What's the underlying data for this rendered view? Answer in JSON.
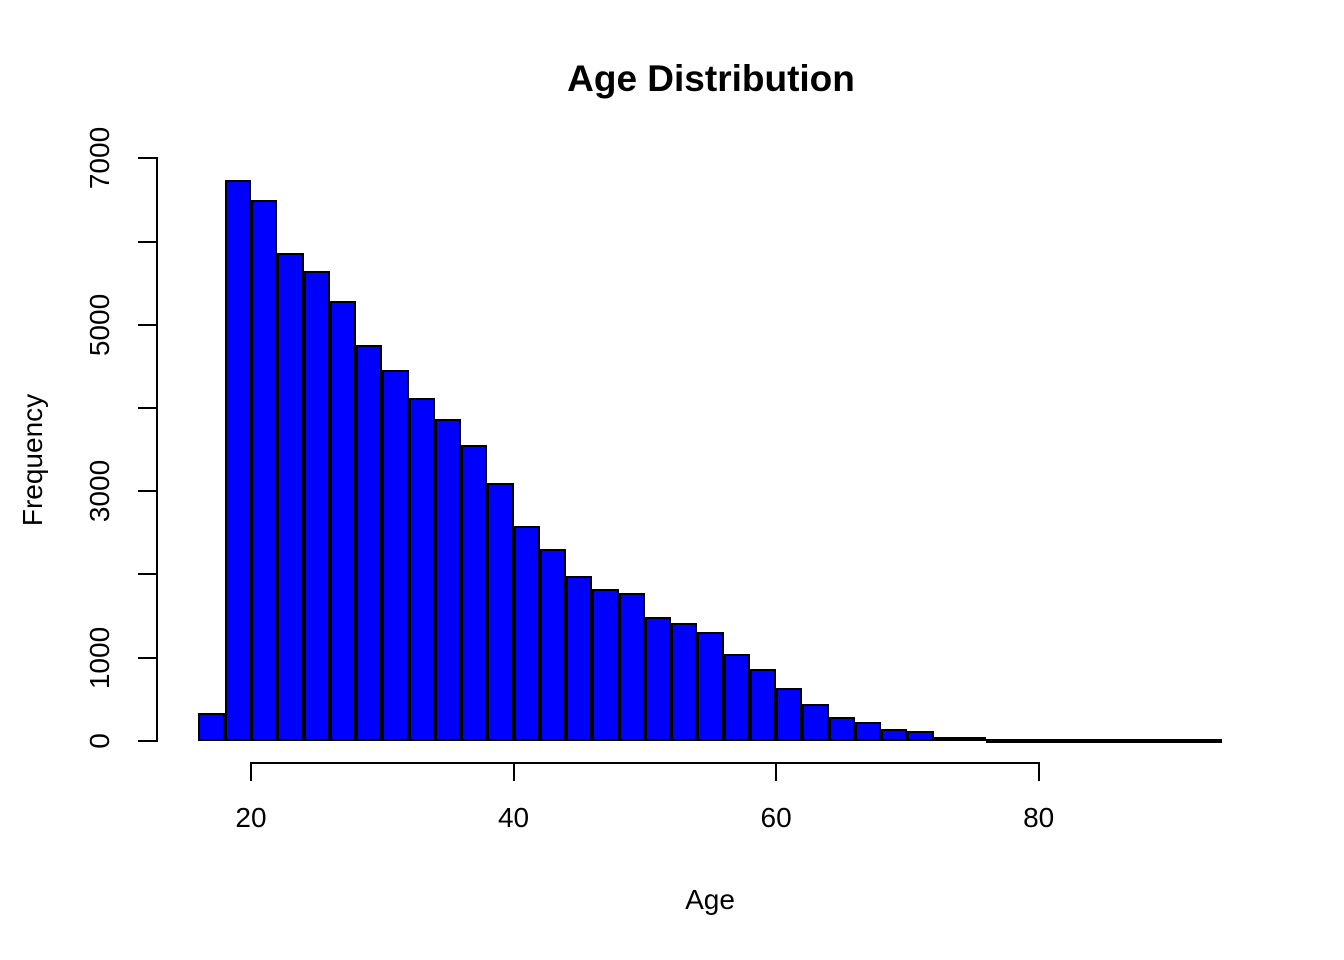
{
  "page": {
    "background": "#FFFFFF",
    "text_color": "#000000"
  },
  "chart_data": {
    "type": "bar",
    "subtype": "histogram",
    "title": "Age Distribution",
    "xlabel": "Age",
    "ylabel": "Frequency",
    "bar_fill_color": "#0000FF",
    "bar_border_color": "#000000",
    "bin_width": 2,
    "bin_starts": [
      16,
      18,
      20,
      22,
      24,
      26,
      28,
      30,
      32,
      34,
      36,
      38,
      40,
      42,
      44,
      46,
      48,
      50,
      52,
      54,
      56,
      58,
      60,
      62,
      64,
      66,
      68,
      70,
      72,
      74,
      76,
      78,
      80,
      82,
      84,
      86,
      88,
      90,
      92
    ],
    "values": [
      330,
      6740,
      6500,
      5860,
      5650,
      5290,
      4760,
      4460,
      4120,
      3870,
      3550,
      3100,
      2580,
      2300,
      1980,
      1820,
      1780,
      1490,
      1420,
      1310,
      1040,
      860,
      630,
      440,
      280,
      220,
      140,
      120,
      50,
      40,
      20,
      12,
      8,
      5,
      4,
      3,
      2,
      1,
      1
    ],
    "x_ticks": [
      20,
      40,
      60,
      80
    ],
    "x_tick_labels": [
      "20",
      "40",
      "60",
      "80"
    ],
    "y_ticks": [
      0,
      1000,
      2000,
      3000,
      4000,
      5000,
      6000,
      7000
    ],
    "y_labeled_ticks": [
      0,
      1000,
      3000,
      5000,
      7000
    ],
    "y_tick_labels": [
      "0",
      "1000",
      "3000",
      "5000",
      "7000"
    ],
    "xlim": [
      16,
      94
    ],
    "ylim": [
      0,
      7000
    ],
    "grid": false,
    "legend": "none"
  }
}
